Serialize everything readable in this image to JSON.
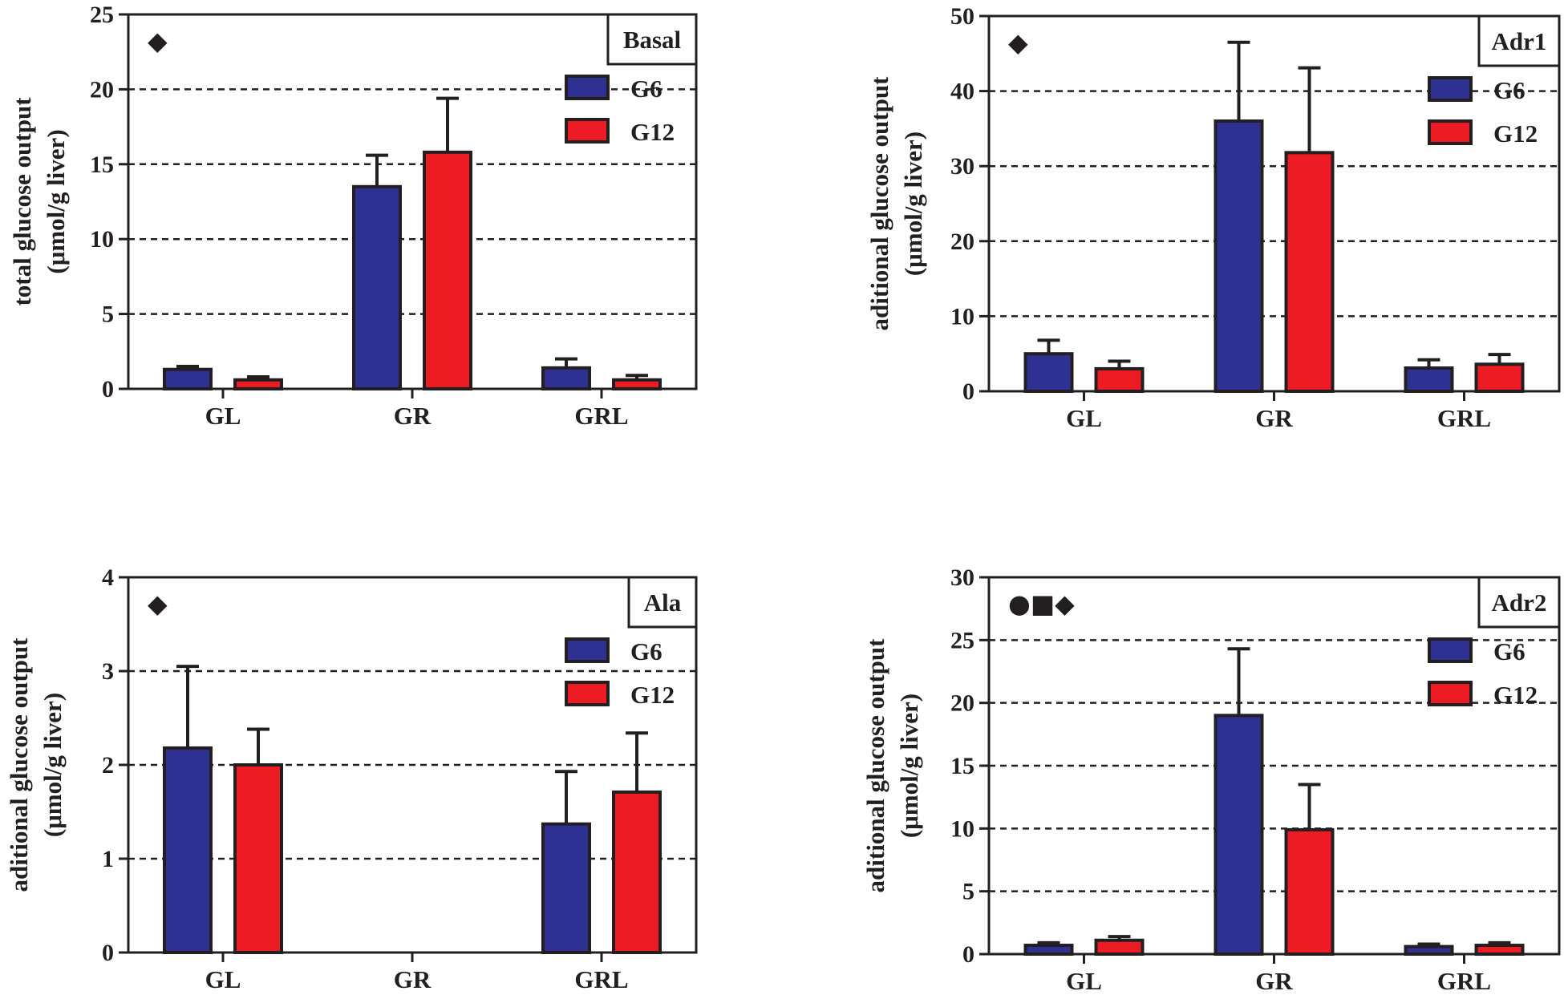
{
  "chart_data": [
    {
      "type": "bar",
      "panel_label": "Basal",
      "markers": [
        "◆"
      ],
      "categories": [
        "GL",
        "GR",
        "GRL"
      ],
      "series": [
        {
          "name": "G6",
          "values": [
            1.3,
            13.5,
            1.4
          ],
          "errors": [
            0.2,
            2.1,
            0.6
          ],
          "color": "#2e3192"
        },
        {
          "name": "G12",
          "values": [
            0.6,
            15.8,
            0.6
          ],
          "errors": [
            0.2,
            3.6,
            0.3
          ],
          "color": "#ed1c24"
        }
      ],
      "ylabel": [
        "total glucose output",
        "(μmol/g liver)"
      ],
      "ylim": [
        0,
        25
      ],
      "yticks": [
        0,
        5,
        10,
        15,
        20,
        25
      ],
      "grid": "dashed horizontal",
      "legend": "top-right"
    },
    {
      "type": "bar",
      "panel_label": "Adr1",
      "markers": [
        "◆"
      ],
      "categories": [
        "GL",
        "GR",
        "GRL"
      ],
      "series": [
        {
          "name": "G6",
          "values": [
            5.0,
            36.0,
            3.1
          ],
          "errors": [
            1.8,
            10.5,
            1.1
          ],
          "color": "#2e3192"
        },
        {
          "name": "G12",
          "values": [
            3.0,
            31.8,
            3.6
          ],
          "errors": [
            1.0,
            11.3,
            1.3
          ],
          "color": "#ed1c24"
        }
      ],
      "ylabel": [
        "aditional glucose output",
        "(μmol/g liver)"
      ],
      "ylim": [
        0,
        50
      ],
      "yticks": [
        0,
        10,
        20,
        30,
        40,
        50
      ],
      "grid": "dashed horizontal",
      "legend": "top-right"
    },
    {
      "type": "bar",
      "panel_label": "Ala",
      "markers": [
        "◆"
      ],
      "categories": [
        "GL",
        "GR",
        "GRL"
      ],
      "series": [
        {
          "name": "G6",
          "values": [
            2.18,
            0,
            1.37
          ],
          "errors": [
            0.87,
            0,
            0.56
          ],
          "color": "#2e3192"
        },
        {
          "name": "G12",
          "values": [
            2.0,
            0,
            1.71
          ],
          "errors": [
            0.38,
            0,
            0.63
          ],
          "color": "#ed1c24"
        }
      ],
      "ylabel": [
        "aditional glucose output",
        "(μmol/g liver)"
      ],
      "ylim": [
        0,
        4
      ],
      "yticks": [
        0,
        1,
        2,
        3,
        4
      ],
      "grid": "dashed horizontal",
      "legend": "top-right"
    },
    {
      "type": "bar",
      "panel_label": "Adr2",
      "markers": [
        "●",
        "■",
        "◆"
      ],
      "categories": [
        "GL",
        "GR",
        "GRL"
      ],
      "series": [
        {
          "name": "G6",
          "values": [
            0.7,
            19.0,
            0.6
          ],
          "errors": [
            0.2,
            5.3,
            0.2
          ],
          "color": "#2e3192"
        },
        {
          "name": "G12",
          "values": [
            1.1,
            9.9,
            0.7
          ],
          "errors": [
            0.3,
            3.6,
            0.2
          ],
          "color": "#ed1c24"
        }
      ],
      "ylabel": [
        "aditional glucose output",
        "(μmol/g liver)"
      ],
      "ylim": [
        0,
        30
      ],
      "yticks": [
        0,
        5,
        10,
        15,
        20,
        25,
        30
      ],
      "grid": "dashed horizontal",
      "legend": "top-right"
    }
  ]
}
